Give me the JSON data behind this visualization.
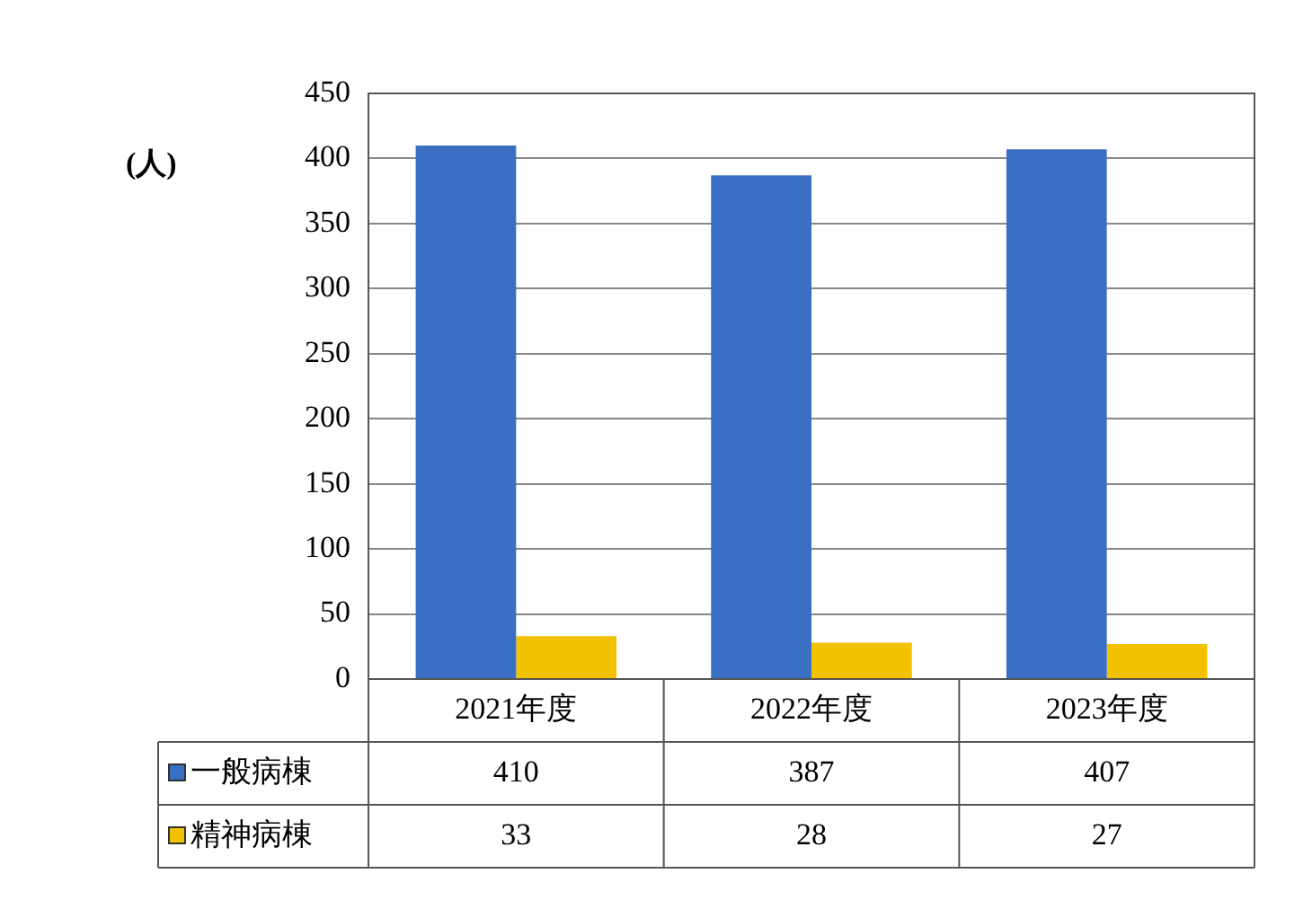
{
  "chart_data": {
    "type": "bar",
    "ylabel": "(人)",
    "categories": [
      "2021年度",
      "2022年度",
      "2023年度"
    ],
    "series": [
      {
        "name": "一般病棟",
        "color": "#3a6fc4",
        "values": [
          410,
          387,
          407
        ]
      },
      {
        "name": "精神病棟",
        "color": "#f2c200",
        "values": [
          33,
          28,
          27
        ]
      }
    ],
    "ylim": [
      0,
      450
    ],
    "yticks": [
      0,
      50,
      100,
      150,
      200,
      250,
      300,
      350,
      400,
      450
    ],
    "grid": "y",
    "data_labels": true,
    "legend": "bottom"
  }
}
